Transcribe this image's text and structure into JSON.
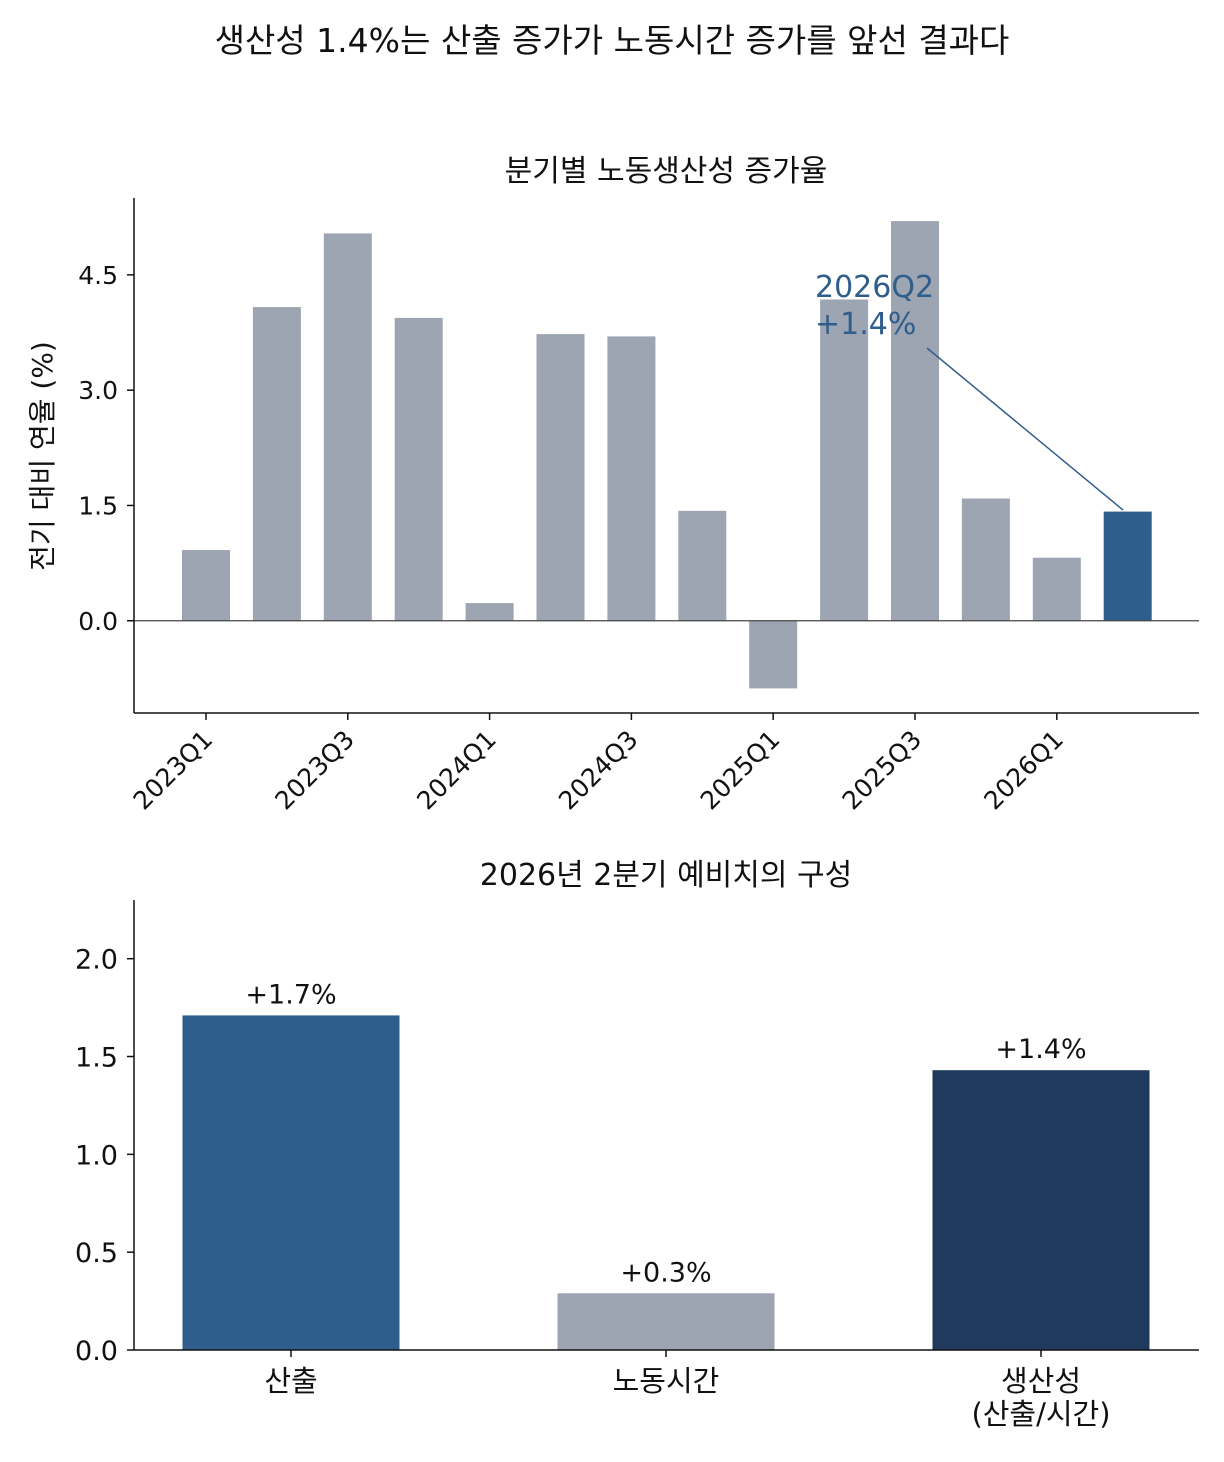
{
  "suptitle": "생산성 1.4%는 산출 증가가 노동시간 증가를 앞선 결과다",
  "chart_data": [
    {
      "type": "bar",
      "title": "분기별 노동생산성 증가율",
      "ylabel": "전기 대비 연율 (%)",
      "xlabel": "",
      "ylim": [
        -1.2,
        5.5
      ],
      "yticks": [
        "0.0",
        "1.5",
        "3.0",
        "4.5"
      ],
      "categories": [
        "2023Q1",
        "2023Q2",
        "2023Q3",
        "2023Q4",
        "2024Q1",
        "2024Q2",
        "2024Q3",
        "2024Q4",
        "2025Q1",
        "2025Q2",
        "2025Q3",
        "2025Q4",
        "2026Q1",
        "2026Q2"
      ],
      "xtick_labels": [
        "2023Q1",
        "2023Q3",
        "2024Q1",
        "2024Q3",
        "2025Q1",
        "2025Q3",
        "2026Q1"
      ],
      "values": [
        0.92,
        4.08,
        5.04,
        3.94,
        0.23,
        3.73,
        3.7,
        1.43,
        -0.88,
        4.18,
        5.2,
        1.59,
        0.82,
        1.42
      ],
      "highlight_index": 13,
      "annotation": {
        "line1": "2026Q2",
        "line2": "+1.4%"
      },
      "grid": false,
      "colors": {
        "default": "#9ca5b1",
        "highlight": "#2f5d8c"
      }
    },
    {
      "type": "bar",
      "title": "2026년 2분기 예비치의 구성",
      "ylabel": "",
      "xlabel": "",
      "ylim": [
        0,
        2.3
      ],
      "yticks": [
        "0.0",
        "0.5",
        "1.0",
        "1.5",
        "2.0"
      ],
      "categories": [
        "산출",
        "노동시간",
        "생산성\n(산출/시간)"
      ],
      "values": [
        1.71,
        0.29,
        1.43
      ],
      "data_labels": [
        "+1.7%",
        "+0.3%",
        "+1.4%"
      ],
      "grid": false,
      "colors": [
        "#2f5d8c",
        "#9ca5b1",
        "#1f3a5c"
      ]
    }
  ]
}
